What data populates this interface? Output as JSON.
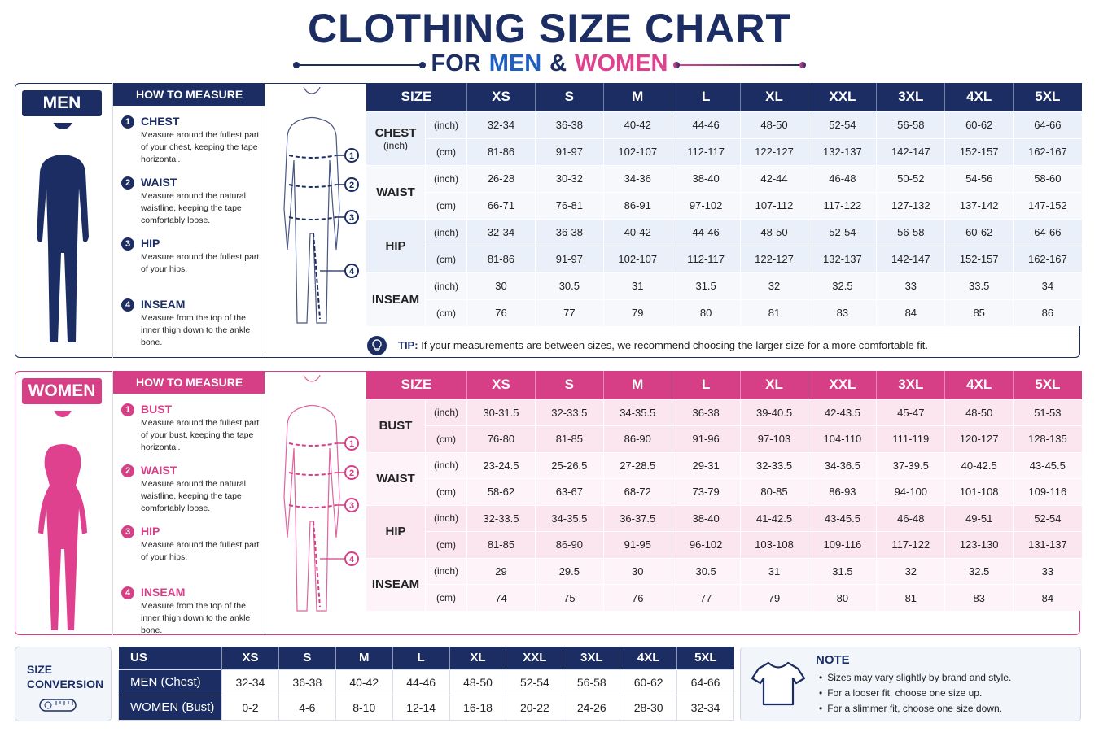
{
  "header": {
    "title": "CLOTHING SIZE CHART",
    "subtitle": [
      "FOR",
      "MEN",
      "&",
      "WOMEN"
    ]
  },
  "men": {
    "label": "MEN",
    "how_to": {
      "title": "HOW TO MEASURE",
      "steps": [
        {
          "num": "1",
          "title": "CHEST",
          "text": "Measure around the fullest part of your chest, keeping the tape horizontal."
        },
        {
          "num": "2",
          "title": "WAIST",
          "text": "Measure around the natural waistline, keeping the tape comfortably loose."
        },
        {
          "num": "3",
          "title": "HIP",
          "text": "Measure around the fullest part of your hips."
        },
        {
          "num": "4",
          "title": "INSEAM",
          "text": "Measure from the top of the inner thigh down to the ankle bone."
        }
      ]
    },
    "table": {
      "header": [
        "SIZE",
        "XS",
        "S",
        "M",
        "L",
        "XL",
        "XXL",
        "3XL",
        "4XL",
        "5XL"
      ],
      "groups": [
        {
          "label": "CHEST",
          "sublabel": "(inch)",
          "rows": [
            {
              "unit": "(inch)",
              "values": [
                "32-34",
                "36-38",
                "40-42",
                "44-46",
                "48-50",
                "52-54",
                "56-58",
                "60-62",
                "64-66"
              ]
            },
            {
              "unit": "(cm)",
              "values": [
                "81-86",
                "91-97",
                "102-107",
                "112-117",
                "122-127",
                "132-137",
                "142-147",
                "152-157",
                "162-167"
              ]
            }
          ]
        },
        {
          "label": "WAIST",
          "rows": [
            {
              "unit": "(inch)",
              "values": [
                "26-28",
                "30-32",
                "34-36",
                "38-40",
                "42-44",
                "46-48",
                "50-52",
                "54-56",
                "58-60"
              ]
            },
            {
              "unit": "(cm)",
              "values": [
                "66-71",
                "76-81",
                "86-91",
                "97-102",
                "107-112",
                "117-122",
                "127-132",
                "137-142",
                "147-152"
              ]
            }
          ]
        },
        {
          "label": "HIP",
          "rows": [
            {
              "unit": "(inch)",
              "values": [
                "32-34",
                "36-38",
                "40-42",
                "44-46",
                "48-50",
                "52-54",
                "56-58",
                "60-62",
                "64-66"
              ]
            },
            {
              "unit": "(cm)",
              "values": [
                "81-86",
                "91-97",
                "102-107",
                "112-117",
                "122-127",
                "132-137",
                "142-147",
                "152-157",
                "162-167"
              ]
            }
          ]
        },
        {
          "label": "INSEAM",
          "rows": [
            {
              "unit": "(inch)",
              "values": [
                "30",
                "30.5",
                "31",
                "31.5",
                "32",
                "32.5",
                "33",
                "33.5",
                "34"
              ]
            },
            {
              "unit": "(cm)",
              "values": [
                "76",
                "77",
                "79",
                "80",
                "81",
                "83",
                "84",
                "85",
                "86"
              ]
            }
          ]
        }
      ]
    },
    "tip": {
      "label": "TIP:",
      "text": "If your measurements are between sizes, we recommend choosing the larger size for a more comfortable fit."
    }
  },
  "women": {
    "label": "WOMEN",
    "how_to": {
      "title": "HOW TO MEASURE",
      "steps": [
        {
          "num": "1",
          "title": "BUST",
          "text": "Measure around the fullest part of your bust, keeping the tape horizontal."
        },
        {
          "num": "2",
          "title": "WAIST",
          "text": "Measure around the natural waistline, keeping the tape comfortably loose."
        },
        {
          "num": "3",
          "title": "HIP",
          "text": "Measure around the fullest part of your hips."
        },
        {
          "num": "4",
          "title": "INSEAM",
          "text": "Measure from the top of the inner thigh down to the ankle bone."
        }
      ]
    },
    "table": {
      "header": [
        "SIZE",
        "XS",
        "S",
        "M",
        "L",
        "XL",
        "XXL",
        "3XL",
        "4XL",
        "5XL"
      ],
      "groups": [
        {
          "label": "BUST",
          "rows": [
            {
              "unit": "(inch)",
              "values": [
                "30-31.5",
                "32-33.5",
                "34-35.5",
                "36-38",
                "39-40.5",
                "42-43.5",
                "45-47",
                "48-50",
                "51-53"
              ]
            },
            {
              "unit": "(cm)",
              "values": [
                "76-80",
                "81-85",
                "86-90",
                "91-96",
                "97-103",
                "104-110",
                "111-119",
                "120-127",
                "128-135"
              ]
            }
          ]
        },
        {
          "label": "WAIST",
          "rows": [
            {
              "unit": "(inch)",
              "values": [
                "23-24.5",
                "25-26.5",
                "27-28.5",
                "29-31",
                "32-33.5",
                "34-36.5",
                "37-39.5",
                "40-42.5",
                "43-45.5"
              ]
            },
            {
              "unit": "(cm)",
              "values": [
                "58-62",
                "63-67",
                "68-72",
                "73-79",
                "80-85",
                "86-93",
                "94-100",
                "101-108",
                "109-116"
              ]
            }
          ]
        },
        {
          "label": "HIP",
          "rows": [
            {
              "unit": "(inch)",
              "values": [
                "32-33.5",
                "34-35.5",
                "36-37.5",
                "38-40",
                "41-42.5",
                "43-45.5",
                "46-48",
                "49-51",
                "52-54"
              ]
            },
            {
              "unit": "(cm)",
              "values": [
                "81-85",
                "86-90",
                "91-95",
                "96-102",
                "103-108",
                "109-116",
                "117-122",
                "123-130",
                "131-137"
              ]
            }
          ]
        },
        {
          "label": "INSEAM",
          "rows": [
            {
              "unit": "(inch)",
              "values": [
                "29",
                "29.5",
                "30",
                "30.5",
                "31",
                "31.5",
                "32",
                "32.5",
                "33"
              ]
            },
            {
              "unit": "(cm)",
              "values": [
                "74",
                "75",
                "76",
                "77",
                "79",
                "80",
                "81",
                "83",
                "84"
              ]
            }
          ]
        }
      ]
    }
  },
  "conversion": {
    "label": "SIZE CONVERSION",
    "header": [
      "US",
      "XS",
      "S",
      "M",
      "L",
      "XL",
      "XXL",
      "3XL",
      "4XL",
      "5XL"
    ],
    "rows": [
      {
        "label": "MEN (Chest)",
        "values": [
          "32-34",
          "36-38",
          "40-42",
          "44-46",
          "48-50",
          "52-54",
          "56-58",
          "60-62",
          "64-66"
        ]
      },
      {
        "label": "WOMEN (Bust)",
        "values": [
          "0-2",
          "4-6",
          "8-10",
          "12-14",
          "16-18",
          "20-22",
          "24-26",
          "28-30",
          "32-34"
        ]
      }
    ]
  },
  "note": {
    "title": "NOTE",
    "items": [
      "Sizes may vary slightly by brand and style.",
      "For a looser fit, choose one size up.",
      "For a slimmer fit, choose one size down."
    ]
  }
}
